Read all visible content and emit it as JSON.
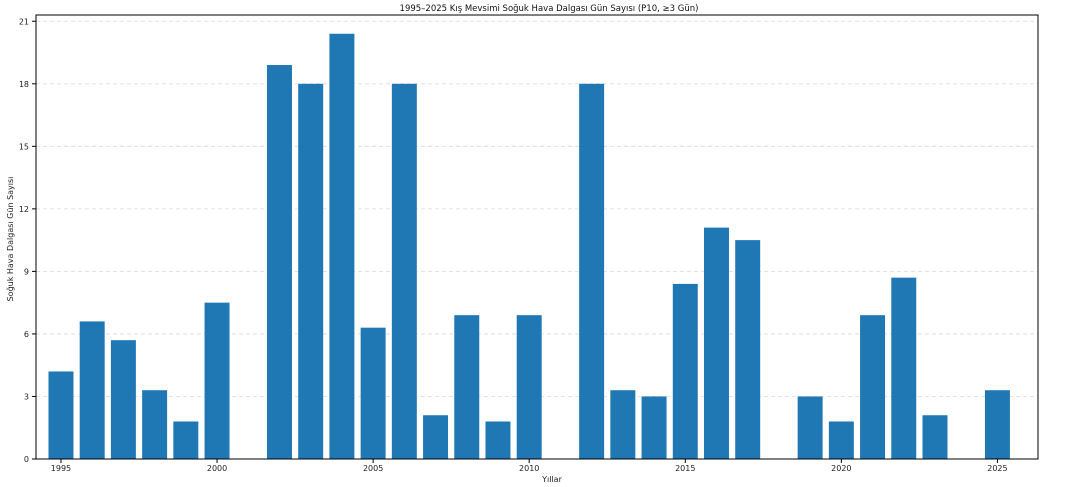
{
  "chart_data": {
    "type": "bar",
    "title": "1995–2025 Kış Mevsimi Soğuk Hava Dalgası Gün Sayısı (P10, ≥3 Gün)",
    "xlabel": "Yıllar",
    "ylabel": "Soğuk Hava Dalgası Gün Sayısı",
    "x": [
      1995,
      1996,
      1997,
      1998,
      1999,
      2000,
      2001,
      2002,
      2003,
      2004,
      2005,
      2006,
      2007,
      2008,
      2009,
      2010,
      2011,
      2012,
      2013,
      2014,
      2015,
      2016,
      2017,
      2018,
      2019,
      2020,
      2021,
      2022,
      2023,
      2024,
      2025
    ],
    "values": [
      4.2,
      6.6,
      5.7,
      3.3,
      1.8,
      7.5,
      0,
      18.9,
      18.0,
      20.4,
      6.3,
      18.0,
      2.1,
      6.9,
      1.8,
      6.9,
      0,
      18.0,
      3.3,
      3.0,
      8.4,
      11.1,
      10.5,
      0,
      3.0,
      1.8,
      6.9,
      8.7,
      2.1,
      0,
      3.3
    ],
    "xticks": [
      "1995",
      "2000",
      "2005",
      "2010",
      "2015",
      "2020",
      "2025"
    ],
    "yticks": [
      "0",
      "3",
      "6",
      "9",
      "12",
      "15",
      "18",
      "21"
    ],
    "xlim": [
      1994.2,
      2026.3
    ],
    "ylim": [
      0,
      21.3
    ],
    "bar_color": "#1f77b4",
    "grid": "horizontal dashed",
    "legend": "none"
  }
}
